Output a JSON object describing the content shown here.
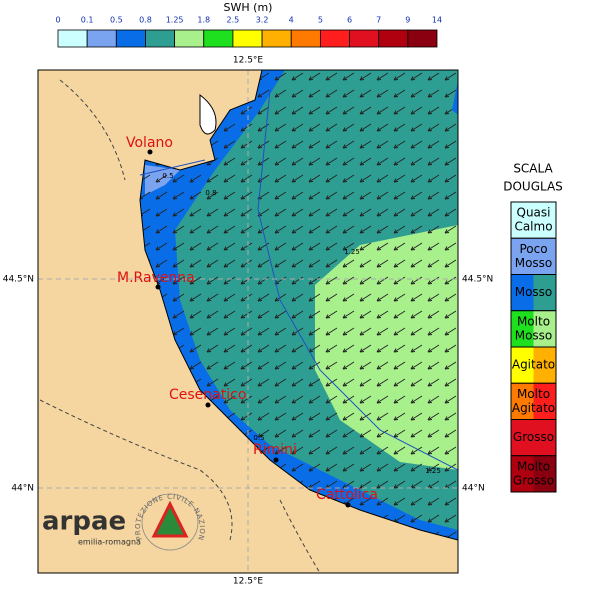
{
  "colorbar": {
    "title": "SWH (m)",
    "ticks": [
      0,
      0.1,
      0.5,
      0.8,
      1.25,
      1.8,
      2.5,
      3.2,
      4,
      5,
      6,
      7,
      9,
      14
    ],
    "colors": [
      "#ccffff",
      "#7ba4f0",
      "#0a6de8",
      "#2e9e93",
      "#a8f08c",
      "#1ee01e",
      "#ffff00",
      "#ffb000",
      "#ff7a00",
      "#ff1e1e",
      "#e01020",
      "#b00010",
      "#8b0010"
    ]
  },
  "axes": {
    "lon_top": "12.5°E",
    "lon_bottom": "12.5°E",
    "lat_left": [
      "44.5°N",
      "44°N"
    ],
    "lat_right": [
      "44.5°N",
      "44°N"
    ]
  },
  "cities": [
    "Volano",
    "M.Ravenna",
    "Cesenatico",
    "Rimini",
    "Cattolica"
  ],
  "contour_labels": [
    "0.5",
    "0.8",
    "1.25",
    "1.25",
    "0.5"
  ],
  "douglas": {
    "title_lines": [
      "SCALA",
      "DOUGLAS"
    ],
    "levels": [
      {
        "lines": [
          "Quasi",
          "Calmo"
        ],
        "colors": [
          "#ccffff",
          "#ccffff"
        ]
      },
      {
        "lines": [
          "Poco",
          "Mosso"
        ],
        "colors": [
          "#7ba4f0",
          "#7ba4f0"
        ]
      },
      {
        "lines": [
          "Mosso"
        ],
        "colors": [
          "#0a6de8",
          "#2e9e93"
        ]
      },
      {
        "lines": [
          "Molto",
          "Mosso"
        ],
        "colors": [
          "#1ee01e",
          "#a8f08c"
        ]
      },
      {
        "lines": [
          "Agitato"
        ],
        "colors": [
          "#ffff00",
          "#ffb000"
        ]
      },
      {
        "lines": [
          "Molto",
          "Agitato"
        ],
        "colors": [
          "#ff7a00",
          "#ff1e1e"
        ]
      },
      {
        "lines": [
          "Grosso"
        ],
        "colors": [
          "#e01020",
          "#e01020"
        ]
      },
      {
        "lines": [
          "Molto",
          "Grosso"
        ],
        "colors": [
          "#b00010",
          "#8b0010"
        ]
      }
    ]
  },
  "logo": {
    "name": "arpae",
    "region": "emilia-romagna",
    "agency": "PROTEZIONE CIVILE NAZIONALE"
  }
}
